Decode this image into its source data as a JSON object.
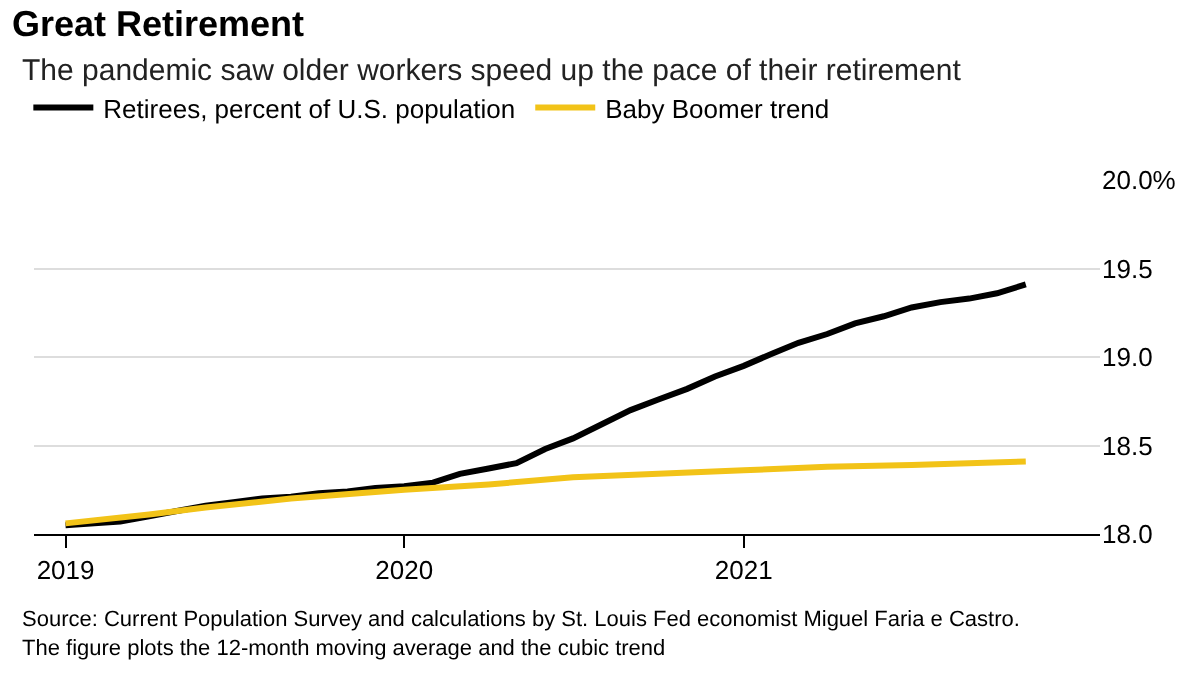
{
  "chart_data": {
    "type": "line",
    "title": "Great Retirement",
    "subtitle": "The pandemic saw older workers speed up the pace of their retirement",
    "x": [
      "2019-01",
      "2019-02",
      "2019-03",
      "2019-04",
      "2019-05",
      "2019-06",
      "2019-07",
      "2019-08",
      "2019-09",
      "2019-10",
      "2019-11",
      "2019-12",
      "2020-01",
      "2020-02",
      "2020-03",
      "2020-04",
      "2020-05",
      "2020-06",
      "2020-07",
      "2020-08",
      "2020-09",
      "2020-10",
      "2020-11",
      "2020-12",
      "2021-01",
      "2021-02",
      "2021-03",
      "2021-04",
      "2021-05",
      "2021-06",
      "2021-07",
      "2021-08",
      "2021-09",
      "2021-10",
      "2021-11"
    ],
    "series": [
      {
        "name": "Retirees, percent of U.S. population",
        "color": "#000000",
        "values": [
          18.05,
          18.06,
          18.07,
          18.1,
          18.13,
          18.16,
          18.18,
          18.2,
          18.21,
          18.23,
          18.24,
          18.26,
          18.27,
          18.29,
          18.34,
          18.37,
          18.4,
          18.48,
          18.54,
          18.62,
          18.7,
          18.76,
          18.82,
          18.89,
          18.95,
          19.02,
          19.08,
          19.13,
          19.19,
          19.23,
          19.28,
          19.31,
          19.33,
          19.36,
          19.41
        ]
      },
      {
        "name": "Baby Boomer trend",
        "color": "#f2c318",
        "x": [
          "2019-01",
          "2019-04",
          "2019-06",
          "2019-09",
          "2020-01",
          "2020-04",
          "2020-07",
          "2020-10",
          "2021-01",
          "2021-04",
          "2021-07",
          "2021-11"
        ],
        "values": [
          18.06,
          18.11,
          18.15,
          18.2,
          18.25,
          18.28,
          18.32,
          18.34,
          18.36,
          18.38,
          18.39,
          18.41
        ]
      }
    ],
    "xlim": [
      "2018-11-28",
      "2022-01-20"
    ],
    "xticks": [
      "2019",
      "2020",
      "2021"
    ],
    "ylim": [
      18.0,
      20.0
    ],
    "yticks": [
      {
        "value": 18.0,
        "label": "18.0"
      },
      {
        "value": 18.5,
        "label": "18.5"
      },
      {
        "value": 19.0,
        "label": "19.0"
      },
      {
        "value": 19.5,
        "label": "19.5"
      },
      {
        "value": 20.0,
        "label": "20.0%"
      }
    ],
    "grid": "y",
    "legend": "top left",
    "marker": "none",
    "line_style": "solid",
    "annotations": [
      "Source: Current Population Survey and calculations by St. Louis Fed economist Miguel Faria e Castro.\nThe figure plots the 12-month moving average and the cubic trend"
    ]
  }
}
